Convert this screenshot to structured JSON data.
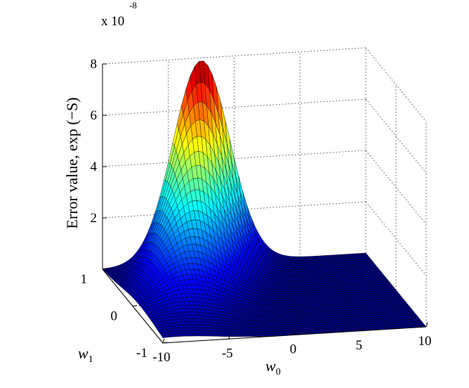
{
  "chart_data": {
    "type": "surface",
    "title": "",
    "zlabel": "Error value, exp (−S)",
    "xlabel": "w0",
    "xlabel_base": "w",
    "xlabel_sub": "0",
    "ylabel": "w1",
    "ylabel_base": "w",
    "ylabel_sub": "1",
    "xlim": [
      -10,
      10
    ],
    "ylim": [
      -1,
      1
    ],
    "zlim": [
      0,
      8e-08
    ],
    "xticks": [
      -10,
      -5,
      0,
      5,
      10
    ],
    "xtick_labels": [
      "-10",
      "-5",
      "0",
      "5",
      "10"
    ],
    "yticks": [
      -1,
      0,
      1
    ],
    "ytick_labels": [
      "-1",
      "0",
      "1"
    ],
    "zticks": [
      2,
      4,
      6,
      8
    ],
    "ztick_labels": [
      "2",
      "4",
      "6",
      "8"
    ],
    "scale_multiplier": "x 10",
    "scale_exponent": "-8",
    "grid": true,
    "colormap": "jet",
    "peak": {
      "w0": -2.5,
      "w1": 1,
      "value": 7.9e-08
    }
  }
}
